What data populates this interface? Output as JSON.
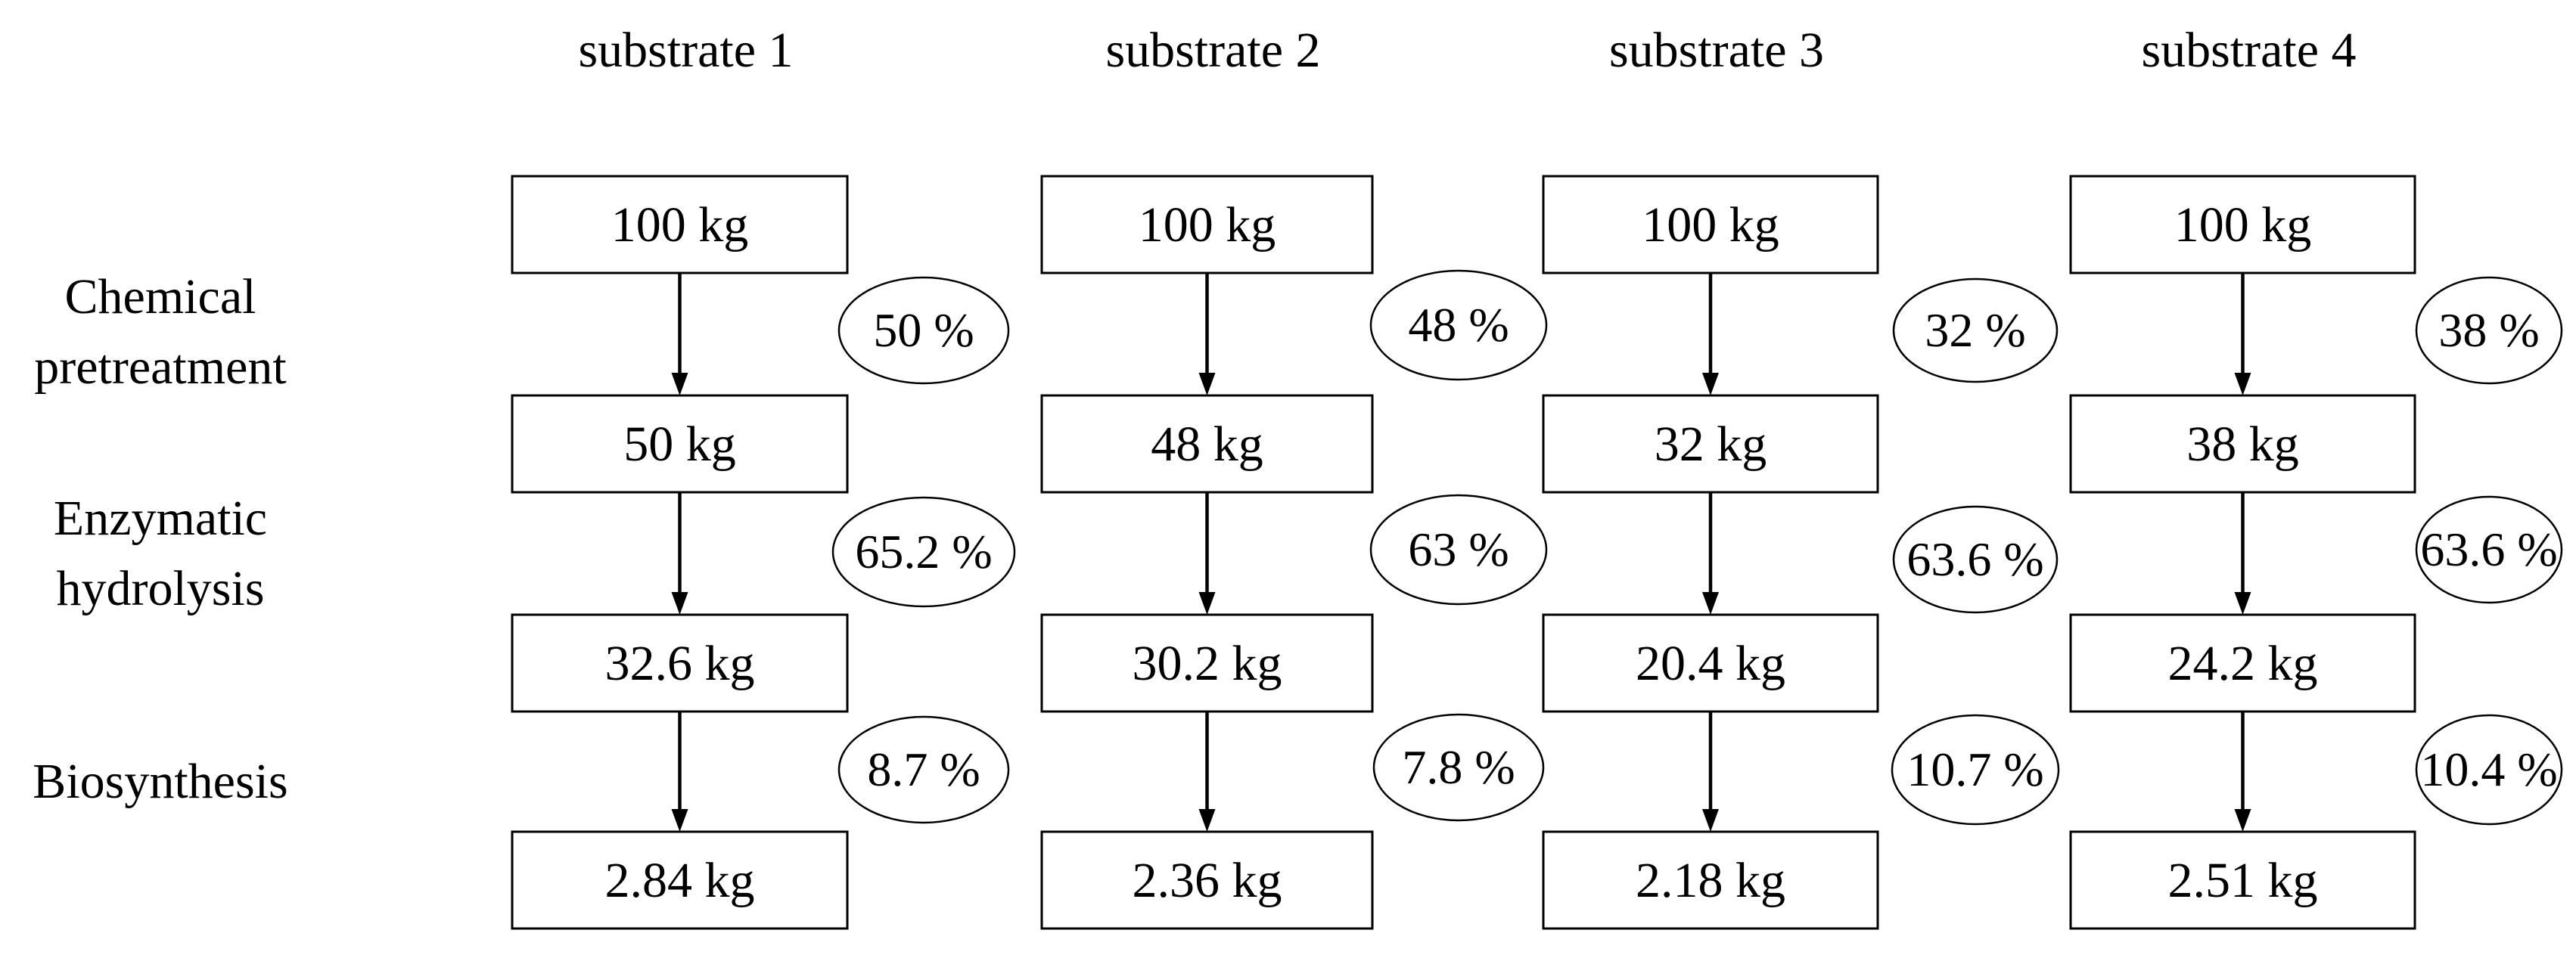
{
  "stages": [
    {
      "lines": [
        "Chemical",
        "pretreatment"
      ]
    },
    {
      "lines": [
        "Enzymatic",
        "hydrolysis"
      ]
    },
    {
      "lines": [
        "Biosynthesis"
      ]
    }
  ],
  "substrates": [
    {
      "name": "substrate 1",
      "masses": [
        "100 kg",
        "50 kg",
        "32.6 kg",
        "2.84 kg"
      ],
      "yields": [
        "50 %",
        "65.2 %",
        "8.7 %"
      ]
    },
    {
      "name": "substrate 2",
      "masses": [
        "100 kg",
        "48 kg",
        "30.2 kg",
        "2.36 kg"
      ],
      "yields": [
        "48 %",
        "63 %",
        "7.8 %"
      ]
    },
    {
      "name": "substrate 3",
      "masses": [
        "100 kg",
        "32 kg",
        "20.4 kg",
        "2.18 kg"
      ],
      "yields": [
        "32 %",
        "63.6 %",
        "10.7 %"
      ]
    },
    {
      "name": "substrate 4",
      "masses": [
        "100 kg",
        "38 kg",
        "24.2 kg",
        "2.51 kg"
      ],
      "yields": [
        "38 %",
        "63.6 %",
        "10.4 %"
      ]
    }
  ]
}
